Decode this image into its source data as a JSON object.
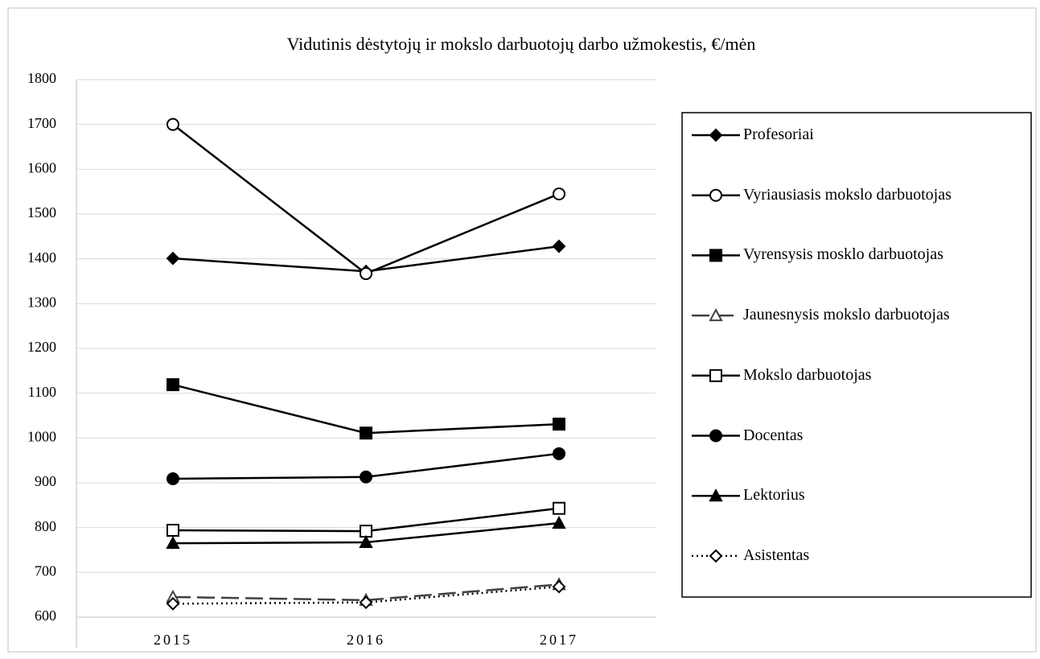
{
  "chart_data": {
    "type": "line",
    "title": "Vidutinis dėstytojų ir mokslo darbuotojų darbo užmokestis, €/mėn",
    "categories": [
      "2015",
      "2016",
      "2017"
    ],
    "ylim": [
      600,
      1800
    ],
    "yticks": [
      600,
      700,
      800,
      900,
      1000,
      1100,
      1200,
      1300,
      1400,
      1500,
      1600,
      1700,
      1800
    ],
    "grid": true,
    "legend": "right",
    "series": [
      {
        "name": "Profesoriai",
        "color": "#000000",
        "marker": "diamond",
        "marker_fill": "#000000",
        "dash": "none",
        "values": [
          1401,
          1372,
          1428
        ]
      },
      {
        "name": "Vyriausiasis mokslo darbuotojas",
        "color": "#000000",
        "marker": "circle",
        "marker_fill": "#ffffff",
        "dash": "none",
        "values": [
          1700,
          1367,
          1545
        ]
      },
      {
        "name": "Vyrensysis mosklo darbuotojas",
        "color": "#000000",
        "marker": "square",
        "marker_fill": "#000000",
        "dash": "none",
        "values": [
          1119,
          1011,
          1031
        ]
      },
      {
        "name": "Jaunesnysis mokslo darbuotojas",
        "color": "#404040",
        "marker": "triangle",
        "marker_fill": "#ffffff",
        "dash": "22,8",
        "values": [
          645,
          638,
          673
        ]
      },
      {
        "name": "Mokslo darbuotojas",
        "color": "#000000",
        "marker": "square",
        "marker_fill": "#ffffff",
        "dash": "none",
        "values": [
          794,
          792,
          843
        ]
      },
      {
        "name": "Docentas",
        "color": "#000000",
        "marker": "circle",
        "marker_fill": "#000000",
        "dash": "none",
        "values": [
          909,
          913,
          965
        ]
      },
      {
        "name": "Lektorius",
        "color": "#000000",
        "marker": "triangle",
        "marker_fill": "#000000",
        "dash": "none",
        "values": [
          765,
          767,
          810
        ]
      },
      {
        "name": "Asistentas",
        "color": "#000000",
        "marker": "diamond",
        "marker_fill": "#ffffff",
        "dash": "2,4",
        "values": [
          630,
          633,
          668
        ]
      }
    ]
  }
}
